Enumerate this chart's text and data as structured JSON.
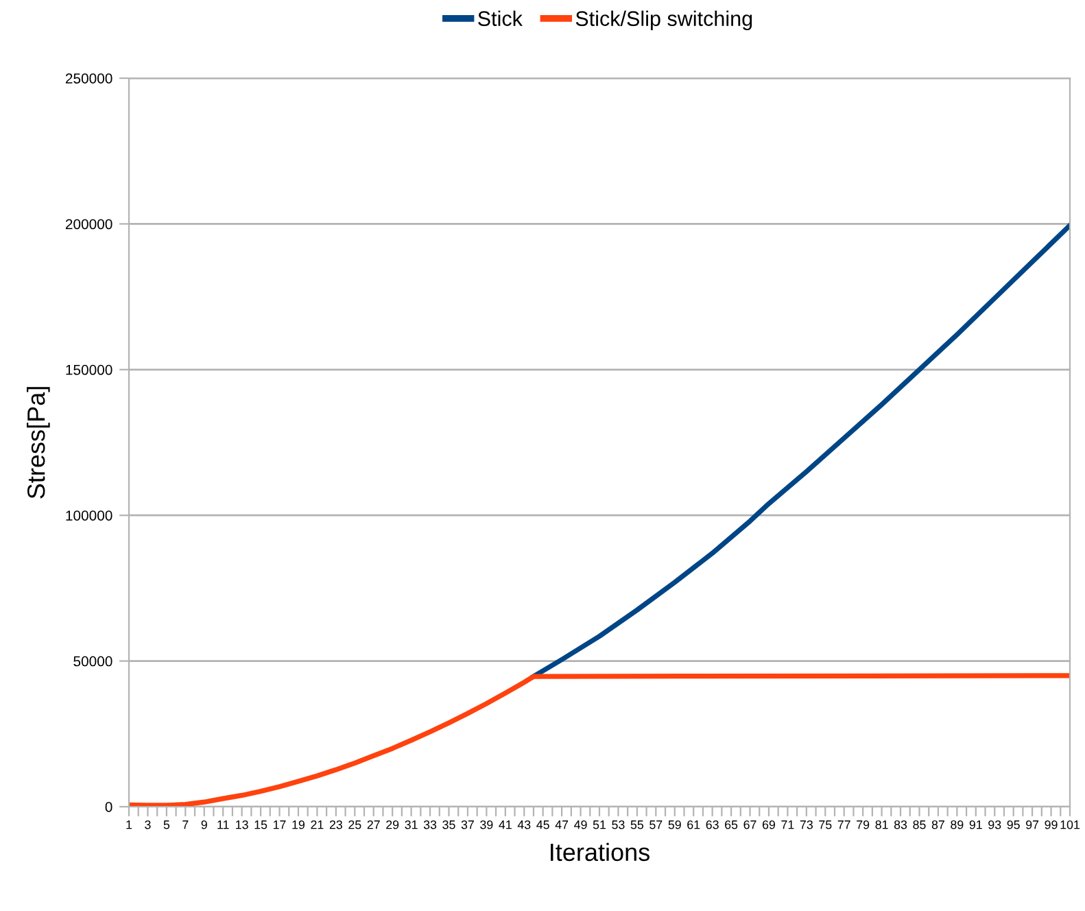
{
  "chart_data": {
    "type": "line",
    "xlabel": "Iterations",
    "ylabel": "Stress[Pa]",
    "xlim": [
      1,
      101
    ],
    "ylim": [
      0,
      250000
    ],
    "yticks": [
      0,
      50000,
      100000,
      150000,
      200000,
      250000
    ],
    "xticks": [
      1,
      {
        "value": 2,
        "label": null
      },
      3,
      {
        "value": 4,
        "label": null
      },
      5,
      {
        "value": 6,
        "label": null
      },
      7,
      {
        "value": 8,
        "label": null
      },
      9,
      {
        "value": 10,
        "label": null
      },
      11,
      {
        "value": 12,
        "label": null
      },
      13,
      {
        "value": 14,
        "label": null
      },
      15,
      {
        "value": 16,
        "label": null
      },
      17,
      {
        "value": 18,
        "label": null
      },
      19,
      {
        "value": 20,
        "label": null
      },
      21,
      {
        "value": 22,
        "label": null
      },
      23,
      {
        "value": 24,
        "label": null
      },
      25,
      {
        "value": 26,
        "label": null
      },
      27,
      {
        "value": 28,
        "label": null
      },
      29,
      {
        "value": 30,
        "label": null
      },
      31,
      {
        "value": 32,
        "label": null
      },
      33,
      {
        "value": 34,
        "label": null
      },
      35,
      {
        "value": 36,
        "label": null
      },
      37,
      {
        "value": 38,
        "label": null
      },
      39,
      {
        "value": 40,
        "label": null
      },
      41,
      {
        "value": 42,
        "label": null
      },
      43,
      {
        "value": 44,
        "label": null
      },
      45,
      {
        "value": 46,
        "label": null
      },
      47,
      {
        "value": 48,
        "label": null
      },
      49,
      {
        "value": 50,
        "label": null
      },
      51,
      {
        "value": 52,
        "label": null
      },
      53,
      {
        "value": 54,
        "label": null
      },
      55,
      {
        "value": 56,
        "label": null
      },
      57,
      {
        "value": 58,
        "label": null
      },
      59,
      {
        "value": 60,
        "label": null
      },
      61,
      {
        "value": 62,
        "label": null
      },
      63,
      {
        "value": 64,
        "label": null
      },
      65,
      {
        "value": 66,
        "label": null
      },
      67,
      {
        "value": 68,
        "label": null
      },
      69,
      {
        "value": 70,
        "label": null
      },
      71,
      {
        "value": 72,
        "label": null
      },
      73,
      {
        "value": 74,
        "label": null
      },
      75,
      {
        "value": 76,
        "label": null
      },
      77,
      {
        "value": 78,
        "label": null
      },
      79,
      {
        "value": 80,
        "label": null
      },
      81,
      {
        "value": 82,
        "label": null
      },
      83,
      {
        "value": 84,
        "label": null
      },
      85,
      {
        "value": 86,
        "label": null
      },
      87,
      {
        "value": 88,
        "label": null
      },
      89,
      {
        "value": 90,
        "label": null
      },
      91,
      {
        "value": 92,
        "label": null
      },
      93,
      {
        "value": 94,
        "label": null
      },
      95,
      {
        "value": 96,
        "label": null
      },
      97,
      {
        "value": 98,
        "label": null
      },
      99,
      {
        "value": 100,
        "label": null
      },
      101
    ],
    "grid": "y",
    "legend": "top",
    "marker": "none",
    "line_style": "solid",
    "series": [
      {
        "name": "Stick",
        "color": "#004586",
        "x": [
          44,
          47,
          51,
          55,
          59,
          63,
          67,
          69,
          73,
          77,
          81,
          85,
          89,
          93,
          97,
          101
        ],
        "values": [
          44700,
          50500,
          58500,
          67500,
          77000,
          87000,
          98000,
          104000,
          115000,
          126500,
          138000,
          150000,
          162000,
          174500,
          187000,
          199500
        ]
      },
      {
        "name": "Stick/Slip switching",
        "color": "#ff420e",
        "x": [
          1,
          3,
          5,
          7,
          9,
          11,
          13,
          15,
          17,
          19,
          21,
          23,
          25,
          27,
          29,
          31,
          33,
          35,
          37,
          39,
          41,
          43,
          44,
          60,
          80,
          101
        ],
        "values": [
          600,
          500,
          500,
          800,
          1600,
          2800,
          3900,
          5300,
          6900,
          8700,
          10600,
          12700,
          15000,
          17500,
          20000,
          22800,
          25700,
          28800,
          32000,
          35400,
          39000,
          42700,
          44700,
          44800,
          44900,
          45000
        ]
      }
    ]
  }
}
